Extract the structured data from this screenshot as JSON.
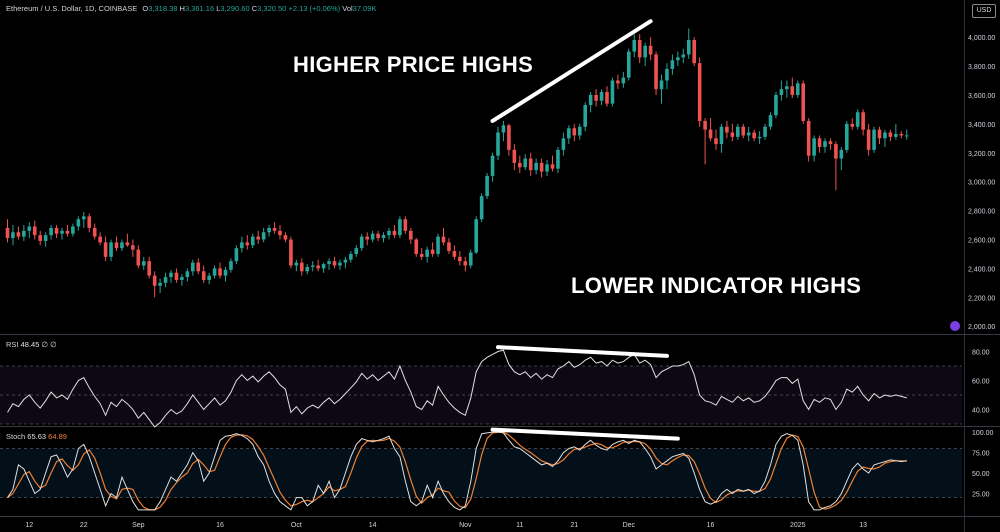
{
  "header": {
    "symbol": "Ethereum / U.S. Dollar, 1D, COINBASE",
    "o_label": "O",
    "o_value": "3,318.38",
    "h_label": "H",
    "h_value": "3,361.16",
    "l_label": "L",
    "l_value": "3,290.60",
    "c_label": "C",
    "c_value": "3,320.50",
    "change": "+2.13 (+0.06%)",
    "vol_label": "Vol",
    "vol_value": "37.09K"
  },
  "currency_button": "USD",
  "annotations": {
    "higher_price_highs": "HIGHER PRICE HIGHS",
    "lower_indicator_highs": "LOWER INDICATOR HIGHS"
  },
  "colors": {
    "up": "#26a69a",
    "down": "#ef5350",
    "rsi_line": "#e0e0e0",
    "stoch_k": "#e0e0e0",
    "stoch_d": "#f08030",
    "trendline": "#ffffff",
    "background": "#000000"
  },
  "chart_data": {
    "type": "candlestick",
    "ylim": [
      1960,
      4160
    ],
    "yticks": [
      2000,
      2200,
      2400,
      2600,
      2800,
      3000,
      3200,
      3400,
      3600,
      3800,
      4000
    ],
    "ytick_labels": [
      "2,000.00",
      "2,200.00",
      "2,400.00",
      "2,600.00",
      "2,800.00",
      "3,000.00",
      "3,200.00",
      "3,400.00",
      "3,600.00",
      "3,800.00",
      "4,000.00"
    ],
    "xticks": [
      {
        "label": "12",
        "index": 4
      },
      {
        "label": "22",
        "index": 14
      },
      {
        "label": "Sep",
        "index": 24
      },
      {
        "label": "16",
        "index": 39
      },
      {
        "label": "Oct",
        "index": 53
      },
      {
        "label": "14",
        "index": 67
      },
      {
        "label": "Nov",
        "index": 84
      },
      {
        "label": "11",
        "index": 94
      },
      {
        "label": "21",
        "index": 104
      },
      {
        "label": "Dec",
        "index": 114
      },
      {
        "label": "16",
        "index": 129
      },
      {
        "label": "2025",
        "index": 145
      },
      {
        "label": "13",
        "index": 157
      }
    ],
    "candles": [
      [
        2680,
        2740,
        2580,
        2610
      ],
      [
        2610,
        2700,
        2560,
        2650
      ],
      [
        2650,
        2690,
        2600,
        2620
      ],
      [
        2620,
        2700,
        2590,
        2660
      ],
      [
        2660,
        2720,
        2610,
        2690
      ],
      [
        2690,
        2730,
        2600,
        2630
      ],
      [
        2630,
        2660,
        2560,
        2590
      ],
      [
        2590,
        2650,
        2550,
        2630
      ],
      [
        2630,
        2700,
        2600,
        2680
      ],
      [
        2680,
        2700,
        2610,
        2640
      ],
      [
        2640,
        2680,
        2600,
        2660
      ],
      [
        2660,
        2700,
        2620,
        2640
      ],
      [
        2640,
        2710,
        2620,
        2690
      ],
      [
        2690,
        2760,
        2660,
        2740
      ],
      [
        2740,
        2790,
        2680,
        2760
      ],
      [
        2760,
        2780,
        2650,
        2680
      ],
      [
        2680,
        2710,
        2600,
        2620
      ],
      [
        2620,
        2650,
        2560,
        2580
      ],
      [
        2580,
        2620,
        2450,
        2480
      ],
      [
        2480,
        2600,
        2450,
        2580
      ],
      [
        2580,
        2620,
        2520,
        2540
      ],
      [
        2540,
        2600,
        2520,
        2580
      ],
      [
        2580,
        2640,
        2550,
        2560
      ],
      [
        2560,
        2600,
        2480,
        2530
      ],
      [
        2530,
        2560,
        2400,
        2420
      ],
      [
        2420,
        2480,
        2390,
        2450
      ],
      [
        2450,
        2480,
        2330,
        2350
      ],
      [
        2350,
        2380,
        2200,
        2280
      ],
      [
        2280,
        2330,
        2230,
        2300
      ],
      [
        2300,
        2370,
        2270,
        2340
      ],
      [
        2340,
        2390,
        2300,
        2370
      ],
      [
        2370,
        2400,
        2300,
        2320
      ],
      [
        2320,
        2360,
        2280,
        2340
      ],
      [
        2340,
        2400,
        2310,
        2380
      ],
      [
        2380,
        2460,
        2350,
        2440
      ],
      [
        2440,
        2470,
        2360,
        2380
      ],
      [
        2380,
        2420,
        2300,
        2320
      ],
      [
        2320,
        2370,
        2290,
        2350
      ],
      [
        2350,
        2420,
        2330,
        2400
      ],
      [
        2400,
        2440,
        2330,
        2350
      ],
      [
        2350,
        2410,
        2310,
        2390
      ],
      [
        2390,
        2470,
        2370,
        2450
      ],
      [
        2450,
        2560,
        2430,
        2540
      ],
      [
        2540,
        2620,
        2510,
        2580
      ],
      [
        2580,
        2630,
        2530,
        2560
      ],
      [
        2560,
        2640,
        2540,
        2620
      ],
      [
        2620,
        2660,
        2570,
        2600
      ],
      [
        2600,
        2680,
        2580,
        2650
      ],
      [
        2650,
        2700,
        2620,
        2680
      ],
      [
        2680,
        2720,
        2640,
        2660
      ],
      [
        2660,
        2700,
        2600,
        2630
      ],
      [
        2630,
        2650,
        2580,
        2600
      ],
      [
        2600,
        2620,
        2400,
        2420
      ],
      [
        2420,
        2460,
        2380,
        2440
      ],
      [
        2440,
        2470,
        2350,
        2380
      ],
      [
        2380,
        2430,
        2360,
        2410
      ],
      [
        2410,
        2450,
        2380,
        2420
      ],
      [
        2420,
        2460,
        2380,
        2400
      ],
      [
        2400,
        2440,
        2370,
        2430
      ],
      [
        2430,
        2470,
        2390,
        2450
      ],
      [
        2450,
        2480,
        2400,
        2420
      ],
      [
        2420,
        2460,
        2390,
        2440
      ],
      [
        2440,
        2480,
        2400,
        2460
      ],
      [
        2460,
        2520,
        2440,
        2500
      ],
      [
        2500,
        2560,
        2480,
        2540
      ],
      [
        2540,
        2640,
        2520,
        2620
      ],
      [
        2620,
        2650,
        2560,
        2600
      ],
      [
        2600,
        2660,
        2580,
        2640
      ],
      [
        2640,
        2660,
        2590,
        2610
      ],
      [
        2610,
        2650,
        2580,
        2630
      ],
      [
        2630,
        2680,
        2600,
        2660
      ],
      [
        2660,
        2700,
        2610,
        2630
      ],
      [
        2630,
        2760,
        2610,
        2740
      ],
      [
        2740,
        2760,
        2640,
        2660
      ],
      [
        2660,
        2680,
        2570,
        2600
      ],
      [
        2600,
        2610,
        2480,
        2500
      ],
      [
        2500,
        2540,
        2460,
        2480
      ],
      [
        2480,
        2550,
        2440,
        2530
      ],
      [
        2530,
        2580,
        2480,
        2500
      ],
      [
        2500,
        2640,
        2480,
        2620
      ],
      [
        2620,
        2680,
        2560,
        2580
      ],
      [
        2580,
        2610,
        2500,
        2520
      ],
      [
        2520,
        2560,
        2460,
        2480
      ],
      [
        2480,
        2520,
        2420,
        2450
      ],
      [
        2450,
        2480,
        2380,
        2420
      ],
      [
        2420,
        2530,
        2400,
        2510
      ],
      [
        2510,
        2760,
        2500,
        2740
      ],
      [
        2740,
        2920,
        2720,
        2900
      ],
      [
        2900,
        3060,
        2880,
        3040
      ],
      [
        3040,
        3200,
        3000,
        3180
      ],
      [
        3180,
        3380,
        3150,
        3340
      ],
      [
        3340,
        3420,
        3280,
        3390
      ],
      [
        3390,
        3400,
        3180,
        3220
      ],
      [
        3220,
        3260,
        3080,
        3130
      ],
      [
        3130,
        3180,
        3060,
        3100
      ],
      [
        3100,
        3190,
        3080,
        3160
      ],
      [
        3160,
        3200,
        3040,
        3080
      ],
      [
        3080,
        3160,
        3050,
        3130
      ],
      [
        3130,
        3160,
        3030,
        3070
      ],
      [
        3070,
        3150,
        3040,
        3120
      ],
      [
        3120,
        3180,
        3070,
        3090
      ],
      [
        3090,
        3240,
        3060,
        3220
      ],
      [
        3220,
        3340,
        3180,
        3300
      ],
      [
        3300,
        3390,
        3260,
        3370
      ],
      [
        3370,
        3400,
        3280,
        3320
      ],
      [
        3320,
        3400,
        3290,
        3380
      ],
      [
        3380,
        3550,
        3350,
        3530
      ],
      [
        3530,
        3620,
        3480,
        3600
      ],
      [
        3600,
        3640,
        3520,
        3560
      ],
      [
        3560,
        3640,
        3530,
        3620
      ],
      [
        3620,
        3660,
        3520,
        3540
      ],
      [
        3540,
        3720,
        3520,
        3700
      ],
      [
        3700,
        3740,
        3640,
        3680
      ],
      [
        3680,
        3760,
        3650,
        3720
      ],
      [
        3720,
        3920,
        3700,
        3900
      ],
      [
        3900,
        4020,
        3860,
        3980
      ],
      [
        3980,
        4020,
        3820,
        3860
      ],
      [
        3860,
        3960,
        3800,
        3940
      ],
      [
        3940,
        4000,
        3840,
        3880
      ],
      [
        3880,
        3900,
        3600,
        3640
      ],
      [
        3640,
        3740,
        3540,
        3700
      ],
      [
        3700,
        3820,
        3640,
        3780
      ],
      [
        3780,
        3880,
        3740,
        3840
      ],
      [
        3840,
        3900,
        3800,
        3860
      ],
      [
        3860,
        3920,
        3820,
        3880
      ],
      [
        3880,
        4060,
        3850,
        3980
      ],
      [
        3980,
        4000,
        3800,
        3820
      ],
      [
        3820,
        3860,
        3380,
        3420
      ],
      [
        3420,
        3440,
        3120,
        3360
      ],
      [
        3360,
        3440,
        3280,
        3300
      ],
      [
        3300,
        3360,
        3220,
        3260
      ],
      [
        3260,
        3400,
        3200,
        3380
      ],
      [
        3380,
        3420,
        3300,
        3340
      ],
      [
        3340,
        3400,
        3280,
        3310
      ],
      [
        3310,
        3400,
        3290,
        3380
      ],
      [
        3380,
        3400,
        3300,
        3320
      ],
      [
        3320,
        3380,
        3280,
        3340
      ],
      [
        3340,
        3360,
        3280,
        3300
      ],
      [
        3300,
        3350,
        3260,
        3310
      ],
      [
        3310,
        3400,
        3290,
        3380
      ],
      [
        3380,
        3480,
        3360,
        3460
      ],
      [
        3460,
        3620,
        3440,
        3600
      ],
      [
        3600,
        3700,
        3560,
        3640
      ],
      [
        3640,
        3700,
        3580,
        3660
      ],
      [
        3660,
        3720,
        3580,
        3600
      ],
      [
        3600,
        3700,
        3580,
        3680
      ],
      [
        3680,
        3700,
        3400,
        3420
      ],
      [
        3420,
        3440,
        3140,
        3180
      ],
      [
        3180,
        3320,
        3140,
        3300
      ],
      [
        3300,
        3320,
        3200,
        3240
      ],
      [
        3240,
        3300,
        3200,
        3280
      ],
      [
        3280,
        3300,
        3220,
        3260
      ],
      [
        3260,
        3280,
        2940,
        3160
      ],
      [
        3160,
        3240,
        3080,
        3220
      ],
      [
        3220,
        3420,
        3200,
        3400
      ],
      [
        3400,
        3440,
        3360,
        3380
      ],
      [
        3380,
        3500,
        3360,
        3480
      ],
      [
        3480,
        3500,
        3320,
        3360
      ],
      [
        3360,
        3400,
        3180,
        3220
      ],
      [
        3220,
        3380,
        3200,
        3360
      ],
      [
        3360,
        3380,
        3260,
        3300
      ],
      [
        3300,
        3360,
        3240,
        3340
      ],
      [
        3340,
        3360,
        3280,
        3310
      ],
      [
        3310,
        3400,
        3290,
        3330
      ],
      [
        3330,
        3350,
        3300,
        3320
      ],
      [
        3318,
        3361,
        3290,
        3320
      ]
    ],
    "rsi": {
      "name": "RSI",
      "value": "48.45",
      "params": "∅ ∅",
      "ylim": [
        30,
        90
      ],
      "yticks": [
        40,
        60,
        80
      ],
      "ytick_labels": [
        "40.00",
        "60.00",
        "80.00"
      ],
      "upper_band": 70,
      "lower_band": 30,
      "mid_line": 50,
      "values": [
        38,
        44,
        42,
        47,
        50,
        45,
        41,
        46,
        52,
        48,
        50,
        47,
        54,
        60,
        62,
        55,
        49,
        44,
        36,
        45,
        42,
        47,
        44,
        40,
        34,
        38,
        33,
        28,
        31,
        36,
        40,
        37,
        39,
        44,
        50,
        45,
        40,
        44,
        48,
        43,
        46,
        52,
        60,
        64,
        60,
        63,
        59,
        63,
        66,
        62,
        57,
        54,
        38,
        42,
        37,
        41,
        43,
        41,
        45,
        48,
        44,
        47,
        51,
        55,
        59,
        65,
        61,
        64,
        60,
        63,
        66,
        61,
        70,
        60,
        52,
        42,
        40,
        46,
        43,
        56,
        50,
        45,
        41,
        38,
        36,
        48,
        66,
        73,
        76,
        78,
        80,
        81,
        71,
        66,
        64,
        66,
        62,
        65,
        61,
        64,
        62,
        68,
        70,
        73,
        69,
        71,
        74,
        76,
        72,
        73,
        70,
        74,
        72,
        73,
        76,
        78,
        72,
        74,
        71,
        62,
        66,
        68,
        70,
        70,
        71,
        73,
        64,
        50,
        46,
        45,
        43,
        49,
        47,
        45,
        49,
        46,
        48,
        45,
        46,
        49,
        54,
        60,
        62,
        62,
        58,
        61,
        46,
        40,
        47,
        45,
        48,
        47,
        40,
        45,
        54,
        52,
        56,
        50,
        46,
        51,
        48,
        50,
        49,
        50,
        49,
        48
      ]
    },
    "stoch": {
      "name": "Stoch",
      "k_value": "65.63",
      "d_value": "64.89",
      "ylim": [
        0,
        105
      ],
      "yticks": [
        25,
        50,
        75,
        100
      ],
      "ytick_labels": [
        "25.00",
        "50.00",
        "75.00",
        "100.00"
      ],
      "upper_band": 80,
      "lower_band": 20,
      "k": [
        20,
        30,
        60,
        55,
        40,
        25,
        30,
        50,
        70,
        72,
        60,
        45,
        55,
        80,
        85,
        70,
        50,
        30,
        10,
        25,
        20,
        45,
        30,
        15,
        5,
        5,
        5,
        5,
        15,
        30,
        45,
        40,
        50,
        60,
        75,
        65,
        40,
        50,
        70,
        90,
        95,
        96,
        98,
        96,
        92,
        85,
        70,
        60,
        40,
        25,
        15,
        10,
        5,
        20,
        20,
        10,
        15,
        35,
        25,
        40,
        20,
        30,
        50,
        70,
        85,
        92,
        90,
        88,
        90,
        92,
        95,
        80,
        70,
        40,
        15,
        10,
        15,
        35,
        20,
        40,
        25,
        15,
        8,
        5,
        10,
        40,
        80,
        98,
        99,
        100,
        100,
        99,
        90,
        82,
        80,
        75,
        70,
        65,
        60,
        62,
        58,
        65,
        75,
        80,
        82,
        78,
        85,
        90,
        84,
        80,
        78,
        85,
        88,
        90,
        86,
        90,
        88,
        80,
        70,
        55,
        60,
        65,
        70,
        72,
        74,
        68,
        50,
        30,
        15,
        12,
        15,
        25,
        30,
        25,
        30,
        28,
        30,
        25,
        28,
        40,
        60,
        85,
        95,
        98,
        96,
        90,
        60,
        15,
        5,
        5,
        8,
        10,
        15,
        25,
        40,
        55,
        62,
        55,
        50,
        60,
        62,
        64,
        66,
        65,
        64,
        65
      ]
    },
    "trendlines": [
      {
        "pane": "price",
        "from": {
          "index": 89,
          "value": 3420
        },
        "to": {
          "index": 118,
          "value": 4110
        }
      },
      {
        "pane": "rsi",
        "from": {
          "index": 90,
          "value": 83
        },
        "to": {
          "index": 121,
          "value": 77
        }
      },
      {
        "pane": "stoch",
        "from": {
          "index": 89,
          "value": 103
        },
        "to": {
          "index": 123,
          "value": 92
        }
      }
    ]
  }
}
